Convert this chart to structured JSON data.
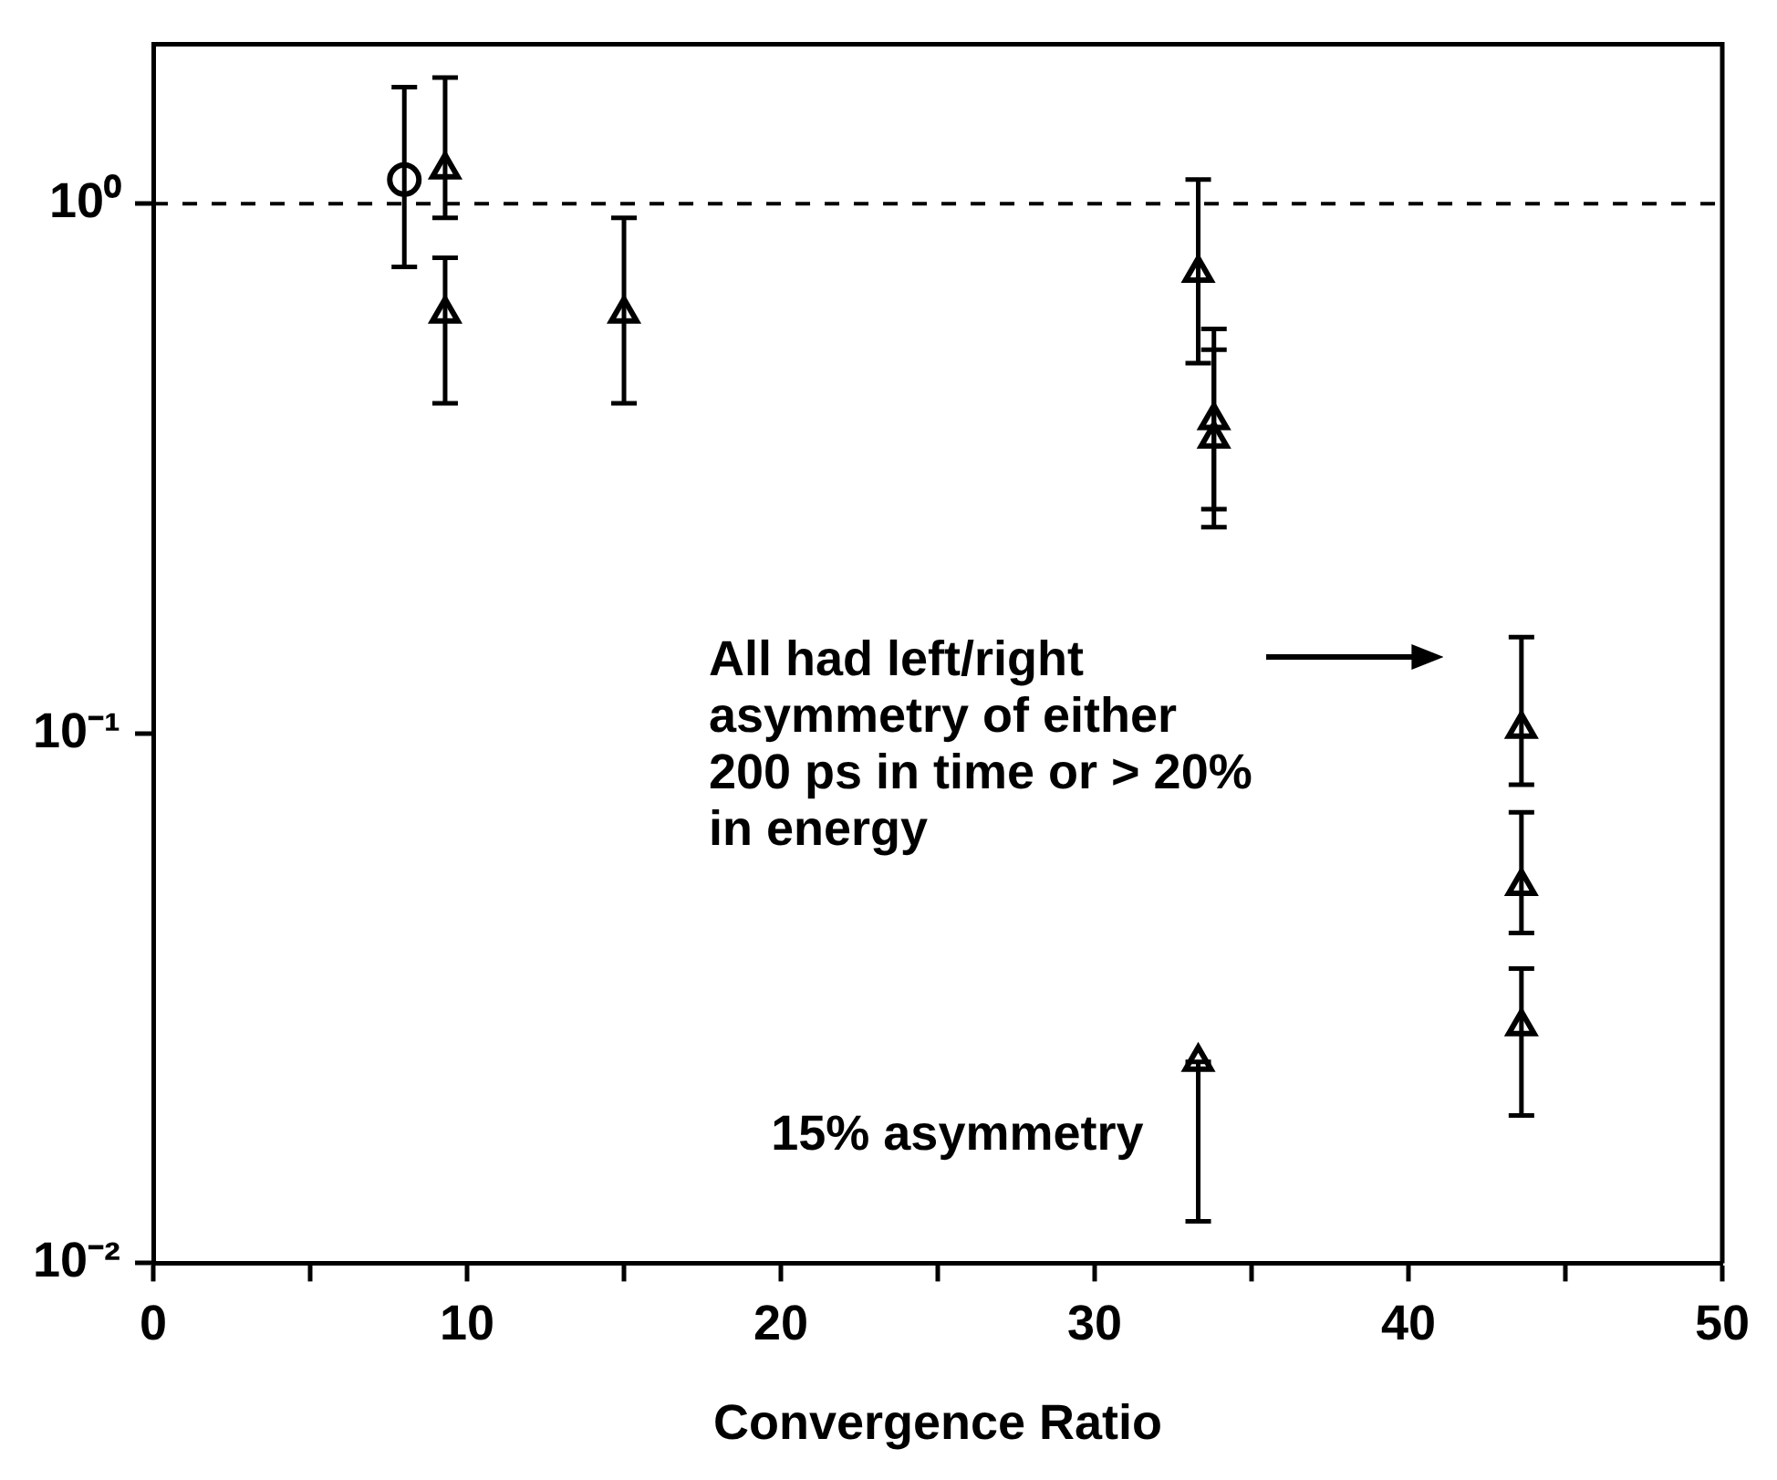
{
  "chart_data": {
    "type": "scatter",
    "xlabel": "Convergence Ratio",
    "xlim": [
      0,
      50
    ],
    "xticks": [
      0,
      {
        "value": 5,
        "label": null
      },
      10,
      {
        "value": 15,
        "label": null
      },
      20,
      {
        "value": 25,
        "label": null
      },
      30,
      {
        "value": 35,
        "label": null
      },
      40,
      {
        "value": 45,
        "label": null
      },
      50
    ],
    "ylim": [
      0.01,
      2
    ],
    "yticks": [
      {
        "value": 0.01,
        "label": "10⁻²"
      },
      {
        "value": 0.1,
        "label": "10⁻¹"
      },
      {
        "value": 1,
        "label": "10⁰"
      }
    ],
    "log": "y",
    "grid": false,
    "legend": false,
    "series": [
      {
        "color": "#000000",
        "marker": "circle",
        "x": [
          8
        ],
        "values": [
          1.11
        ],
        "errors": [
          [
            0.76,
            1.66
          ]
        ]
      },
      {
        "color": "#000000",
        "marker": "triangle",
        "x": [
          9.3,
          9.3,
          15,
          33.3,
          33.8,
          33.8,
          43.6,
          43.6,
          43.6,
          33.3
        ],
        "values": [
          1.16,
          0.62,
          0.62,
          0.74,
          0.39,
          0.36,
          0.102,
          0.0515,
          0.028,
          0.024
        ],
        "errors": [
          [
            0.94,
            1.73
          ],
          [
            0.42,
            0.79
          ],
          [
            0.42,
            0.94
          ],
          [
            0.5,
            1.11
          ],
          [
            0.265,
            0.58
          ],
          [
            0.245,
            0.53
          ],
          [
            0.08,
            0.152
          ],
          [
            0.042,
            0.071
          ],
          [
            0.019,
            0.036
          ],
          [
            0.012,
            0.024
          ]
        ]
      }
    ],
    "ref_lines": [
      {
        "axis": "y",
        "value": 1,
        "line_style": "dashed"
      }
    ],
    "annotations": [
      "All had left/right asymmetry of either 200 ps in time or > 20% in energy",
      {
        "text": "15% asymmetry",
        "x": 33.3,
        "y": 0.024
      }
    ]
  }
}
